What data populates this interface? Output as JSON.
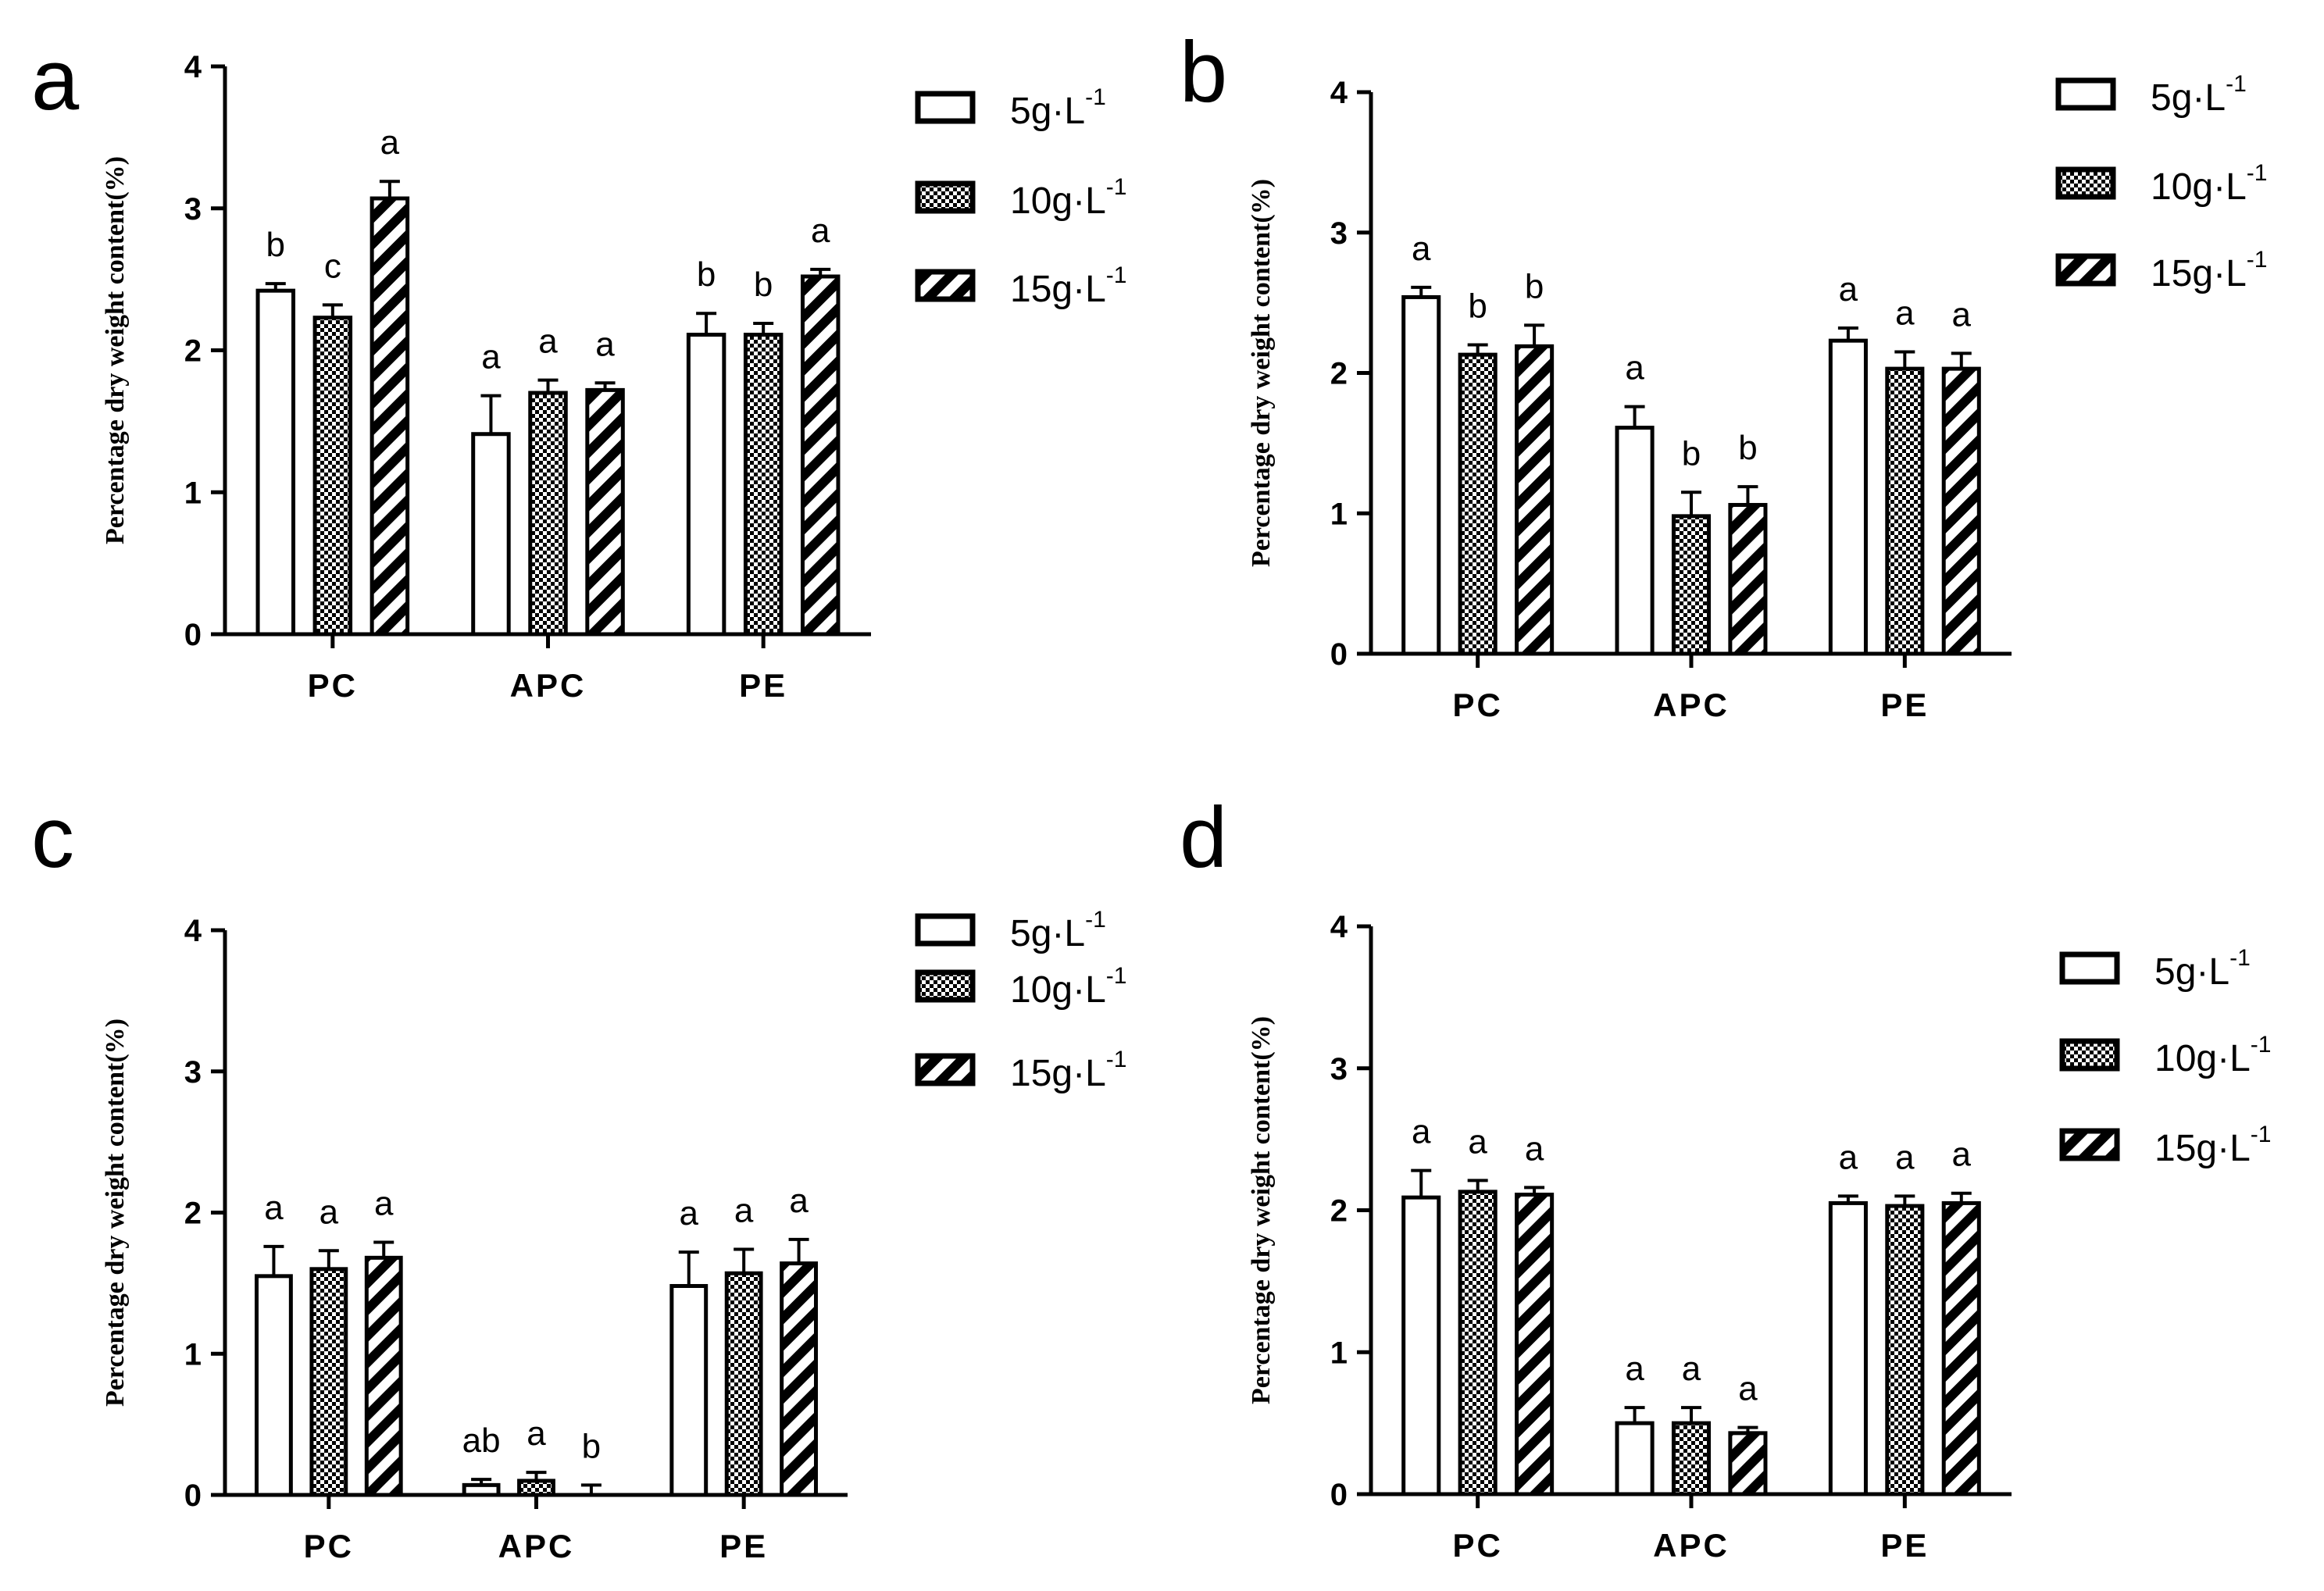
{
  "legend": {
    "items": [
      {
        "label": "5g·L",
        "sup": "-1",
        "pattern": "open"
      },
      {
        "label": "10g·L",
        "sup": "-1",
        "pattern": "checker"
      },
      {
        "label": "15g·L",
        "sup": "-1",
        "pattern": "diagonal"
      }
    ]
  },
  "chart_data": [
    {
      "panel": "a",
      "type": "bar",
      "ylabel": "Percentage dry weight content(%)",
      "xlabel": "",
      "ylim": [
        0,
        4
      ],
      "yticks": [
        "0",
        "1",
        "2",
        "3",
        "4"
      ],
      "categories": [
        "PC",
        "APC",
        "PE"
      ],
      "series": [
        {
          "name": "5g·L-1",
          "values": [
            2.42,
            1.41,
            2.11
          ],
          "errors": [
            0.05,
            0.27,
            0.15
          ],
          "letters": [
            "b",
            "a",
            "b"
          ]
        },
        {
          "name": "10g·L-1",
          "values": [
            2.23,
            1.7,
            2.11
          ],
          "errors": [
            0.09,
            0.09,
            0.08
          ],
          "letters": [
            "c",
            "a",
            "b"
          ]
        },
        {
          "name": "15g·L-1",
          "values": [
            3.07,
            1.72,
            2.52
          ],
          "errors": [
            0.12,
            0.05,
            0.05
          ],
          "letters": [
            "a",
            "a",
            "a"
          ]
        }
      ]
    },
    {
      "panel": "b",
      "type": "bar",
      "ylabel": "Percentage dry weight content(%)",
      "xlabel": "",
      "ylim": [
        0,
        4
      ],
      "yticks": [
        "0",
        "1",
        "2",
        "3",
        "4"
      ],
      "categories": [
        "PC",
        "APC",
        "PE"
      ],
      "series": [
        {
          "name": "5g·L-1",
          "values": [
            2.54,
            1.61,
            2.23
          ],
          "errors": [
            0.07,
            0.15,
            0.09
          ],
          "letters": [
            "a",
            "a",
            "a"
          ]
        },
        {
          "name": "10g·L-1",
          "values": [
            2.13,
            0.98,
            2.03
          ],
          "errors": [
            0.07,
            0.17,
            0.12
          ],
          "letters": [
            "b",
            "b",
            "a"
          ]
        },
        {
          "name": "15g·L-1",
          "values": [
            2.19,
            1.06,
            2.03
          ],
          "errors": [
            0.15,
            0.13,
            0.11
          ],
          "letters": [
            "b",
            "b",
            "a"
          ]
        }
      ]
    },
    {
      "panel": "c",
      "type": "bar",
      "ylabel": "Percentage dry weight content(%)",
      "xlabel": "",
      "ylim": [
        0,
        4
      ],
      "yticks": [
        "0",
        "1",
        "2",
        "3",
        "4"
      ],
      "categories": [
        "PC",
        "APC",
        "PE"
      ],
      "series": [
        {
          "name": "5g·L-1",
          "values": [
            1.55,
            0.07,
            1.48
          ],
          "errors": [
            0.21,
            0.04,
            0.24
          ],
          "letters": [
            "a",
            "ab",
            "a"
          ]
        },
        {
          "name": "10g·L-1",
          "values": [
            1.6,
            0.1,
            1.57
          ],
          "errors": [
            0.13,
            0.06,
            0.17
          ],
          "letters": [
            "a",
            "a",
            "a"
          ]
        },
        {
          "name": "15g·L-1",
          "values": [
            1.68,
            0.0,
            1.64
          ],
          "errors": [
            0.11,
            0.07,
            0.17
          ],
          "letters": [
            "a",
            "b",
            "a"
          ]
        }
      ]
    },
    {
      "panel": "d",
      "type": "bar",
      "ylabel": "Percentage dry weight content(%)",
      "xlabel": "",
      "ylim": [
        0,
        4
      ],
      "yticks": [
        "0",
        "1",
        "2",
        "3",
        "4"
      ],
      "categories": [
        "PC",
        "APC",
        "PE"
      ],
      "series": [
        {
          "name": "5g·L-1",
          "values": [
            2.09,
            0.5,
            2.05
          ],
          "errors": [
            0.19,
            0.11,
            0.05
          ],
          "letters": [
            "a",
            "a",
            "a"
          ]
        },
        {
          "name": "10g·L-1",
          "values": [
            2.13,
            0.5,
            2.03
          ],
          "errors": [
            0.08,
            0.11,
            0.07
          ],
          "letters": [
            "a",
            "a",
            "a"
          ]
        },
        {
          "name": "15g·L-1",
          "values": [
            2.11,
            0.43,
            2.05
          ],
          "errors": [
            0.05,
            0.04,
            0.07
          ],
          "letters": [
            "a",
            "a",
            "a"
          ]
        }
      ]
    }
  ]
}
